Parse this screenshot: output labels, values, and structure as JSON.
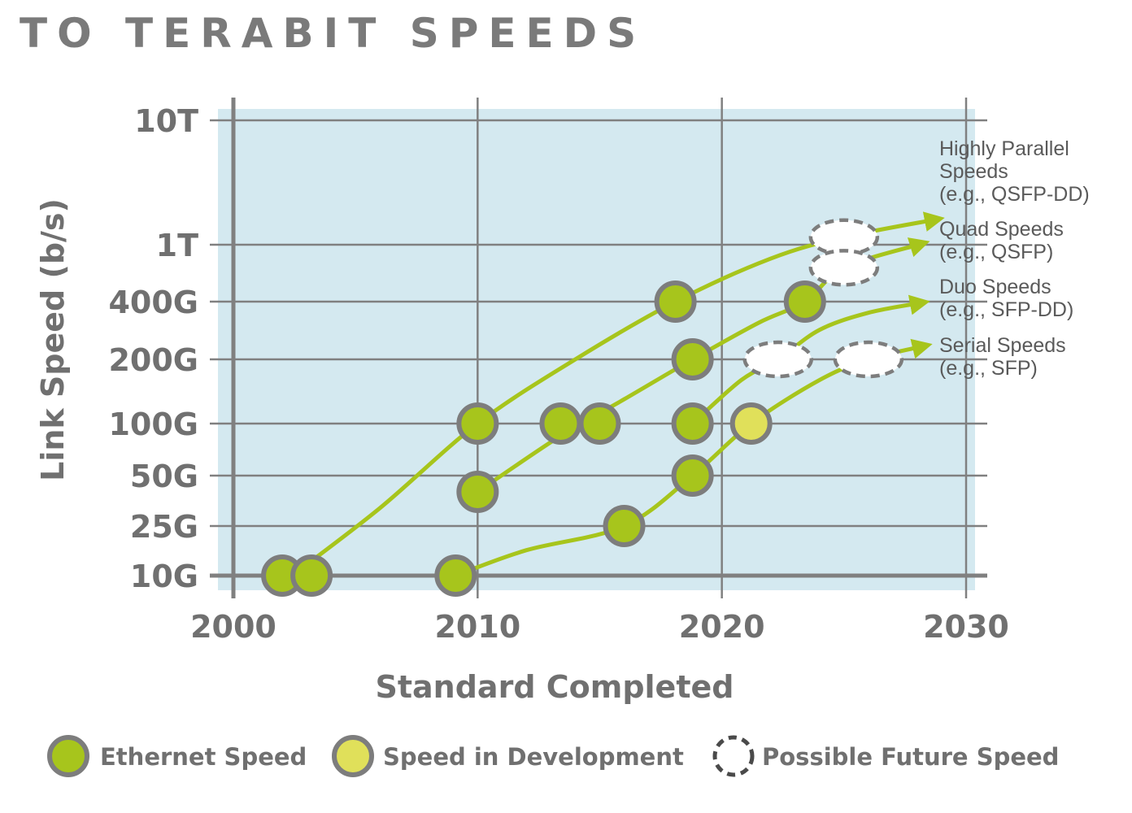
{
  "title": "TO TERABIT SPEEDS",
  "colors": {
    "plot_bg": "#d4e9f0",
    "grid": "#808080",
    "ethernet_fill": "#a7c51c",
    "development_fill": "#e0e05a",
    "marker_stroke": "#7d7d7d",
    "trend_line": "#a7c51c",
    "future_fill": "#ffffff"
  },
  "chart_data": {
    "type": "scatter",
    "xlabel": "Standard Completed",
    "ylabel": "Link Speed (b/s)",
    "xlim": [
      2000,
      2030
    ],
    "x_ticks": [
      2000,
      2010,
      2020,
      2030
    ],
    "x_tick_labels": [
      "2000",
      "2010",
      "2020",
      "2030"
    ],
    "y_scale": "log",
    "y_ticks": [
      10000000000.0,
      25000000000.0,
      50000000000.0,
      100000000000.0,
      200000000000.0,
      400000000000.0,
      1000000000000.0,
      10000000000000.0
    ],
    "y_tick_labels": [
      "10G",
      "25G",
      "50G",
      "100G",
      "200G",
      "400G",
      "1T",
      "10T"
    ],
    "grid": true,
    "series": [
      {
        "name": "Ethernet Speed",
        "kind": "marker",
        "points": [
          {
            "x": 2002,
            "y": 10000000000.0
          },
          {
            "x": 2003.2,
            "y": 10000000000.0
          },
          {
            "x": 2009.1,
            "y": 10000000000.0
          },
          {
            "x": 2010,
            "y": 100000000000.0
          },
          {
            "x": 2010,
            "y": 40000000000.0
          },
          {
            "x": 2013.4,
            "y": 100000000000.0
          },
          {
            "x": 2015,
            "y": 100000000000.0
          },
          {
            "x": 2016,
            "y": 25000000000.0
          },
          {
            "x": 2018.1,
            "y": 400000000000.0
          },
          {
            "x": 2018.8,
            "y": 200000000000.0
          },
          {
            "x": 2018.8,
            "y": 100000000000.0
          },
          {
            "x": 2018.8,
            "y": 50000000000.0
          },
          {
            "x": 2023.4,
            "y": 400000000000.0
          }
        ]
      },
      {
        "name": "Speed in Development",
        "kind": "marker",
        "points": [
          {
            "x": 2021.2,
            "y": 100000000000.0
          }
        ]
      },
      {
        "name": "Possible Future Speed",
        "kind": "marker",
        "points": [
          {
            "x": 2025,
            "y": 1150000000000.0
          },
          {
            "x": 2025,
            "y": 690000000000.0
          },
          {
            "x": 2022.3,
            "y": 200000000000.0
          },
          {
            "x": 2026,
            "y": 200000000000.0
          }
        ]
      }
    ],
    "trends": [
      {
        "name": "Highly Parallel Speeds",
        "label_lines": [
          "Highly Parallel",
          "Speeds",
          "(e.g., QSFP-DD)"
        ],
        "points": [
          {
            "x": 2002.4,
            "y": 10000000000.0
          },
          {
            "x": 2006,
            "y": 32000000000.0
          },
          {
            "x": 2010,
            "y": 100000000000.0
          },
          {
            "x": 2014,
            "y": 200000000000.0
          },
          {
            "x": 2018.1,
            "y": 400000000000.0
          },
          {
            "x": 2022,
            "y": 800000000000.0
          },
          {
            "x": 2025,
            "y": 1150000000000.0
          },
          {
            "x": 2028.8,
            "y": 1600000000000.0
          }
        ]
      },
      {
        "name": "Quad Speeds",
        "label_lines": [
          "Quad Speeds",
          "(e.g., QSFP)"
        ],
        "points": [
          {
            "x": 2010,
            "y": 40000000000.0
          },
          {
            "x": 2013.4,
            "y": 85000000000.0
          },
          {
            "x": 2016,
            "y": 130000000000.0
          },
          {
            "x": 2018.8,
            "y": 200000000000.0
          },
          {
            "x": 2021.5,
            "y": 310000000000.0
          },
          {
            "x": 2023.4,
            "y": 400000000000.0
          },
          {
            "x": 2025,
            "y": 690000000000.0
          },
          {
            "x": 2028.2,
            "y": 1020000000000.0
          }
        ]
      },
      {
        "name": "Duo Speeds",
        "label_lines": [
          "Duo Speeds",
          "(e.g., SFP-DD)"
        ],
        "points": [
          {
            "x": 2018.8,
            "y": 100000000000.0
          },
          {
            "x": 2020.8,
            "y": 160000000000.0
          },
          {
            "x": 2022.3,
            "y": 200000000000.0
          },
          {
            "x": 2024,
            "y": 285000000000.0
          },
          {
            "x": 2026,
            "y": 350000000000.0
          },
          {
            "x": 2028.2,
            "y": 395000000000.0
          }
        ]
      },
      {
        "name": "Serial Speeds",
        "label_lines": [
          "Serial Speeds",
          "(e.g., SFP)"
        ],
        "points": [
          {
            "x": 2009.1,
            "y": 10000000000.0
          },
          {
            "x": 2012,
            "y": 16000000000.0
          },
          {
            "x": 2016,
            "y": 25000000000.0
          },
          {
            "x": 2018.8,
            "y": 50000000000.0
          },
          {
            "x": 2021.2,
            "y": 100000000000.0
          },
          {
            "x": 2024,
            "y": 160000000000.0
          },
          {
            "x": 2026,
            "y": 200000000000.0
          },
          {
            "x": 2028.3,
            "y": 235000000000.0
          }
        ]
      }
    ],
    "legend": {
      "position": "bottom",
      "items": [
        {
          "label": "Ethernet Speed",
          "marker": "ethernet"
        },
        {
          "label": "Speed in Development",
          "marker": "development"
        },
        {
          "label": "Possible Future Speed",
          "marker": "future"
        }
      ]
    }
  }
}
